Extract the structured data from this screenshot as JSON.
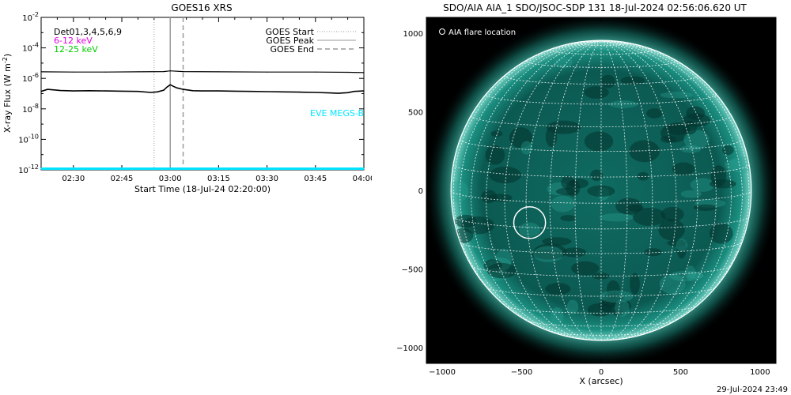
{
  "timestamp": "29-Jul-2024 23:49",
  "colors": {
    "det_label": "#000000",
    "band_low_label": "#e000e0",
    "band_high_label": "#00cc00",
    "eve_label": "#00e5ff",
    "flux_series": "#000000",
    "start_line": "#9a9a9a",
    "peak_line": "#9a9a9a",
    "end_line": "#9a9a9a",
    "solar_disk": "#0b5a52",
    "grid": "#ffffff"
  },
  "chart_data": [
    {
      "type": "line",
      "title": "GOES16 XRS",
      "xlabel": "Start Time (18-Jul-24 02:20:00)",
      "ylabel": "X-ray Flux (W m",
      "ylabel_sup": "-2",
      "ylabel_end": ")",
      "y_scale": "log",
      "xlim_minutes": [
        0,
        100
      ],
      "x_ticks": [
        {
          "minute": 10,
          "label": "02:30"
        },
        {
          "minute": 25,
          "label": "02:45"
        },
        {
          "minute": 40,
          "label": "03:00"
        },
        {
          "minute": 55,
          "label": "03:15"
        },
        {
          "minute": 70,
          "label": "03:30"
        },
        {
          "minute": 85,
          "label": "03:45"
        },
        {
          "minute": 100,
          "label": "04:00"
        }
      ],
      "ylim_exponent": [
        -12,
        -2
      ],
      "y_ticks": [
        {
          "exp": -2,
          "label": "10",
          "sup": "-2"
        },
        {
          "exp": -4,
          "label": "10",
          "sup": "-4"
        },
        {
          "exp": -6,
          "label": "10",
          "sup": "-6"
        },
        {
          "exp": -8,
          "label": "10",
          "sup": "-8"
        },
        {
          "exp": -10,
          "label": "10",
          "sup": "-10"
        },
        {
          "exp": -12,
          "label": "10",
          "sup": "-12"
        }
      ],
      "detector_label": "Det01,3,4,5,6,9",
      "band_labels": [
        "6-12 keV",
        "12-25 keV"
      ],
      "legend": [
        {
          "label": "GOES Start",
          "style": "dotted"
        },
        {
          "label": "GOES Peak",
          "style": "solid"
        },
        {
          "label": "GOES End",
          "style": "dashed"
        }
      ],
      "eve_label": "EVE MEGS-B",
      "markers": {
        "start": 35.0,
        "peak": 40.0,
        "end": 44.0
      },
      "series": [
        {
          "name": "long channel",
          "x": [
            0,
            10,
            20,
            30,
            38,
            40,
            44,
            55,
            70,
            85,
            95,
            100
          ],
          "y": [
            2.7e-06,
            2.6e-06,
            2.6e-06,
            2.7e-06,
            2.8e-06,
            3.1e-06,
            2.8e-06,
            2.7e-06,
            2.6e-06,
            2.6e-06,
            2.5e-06,
            2.4e-06
          ]
        },
        {
          "name": "short channel",
          "x": [
            0,
            2,
            6,
            10,
            15,
            20,
            25,
            30,
            34,
            36,
            38,
            39,
            40,
            41,
            42,
            44,
            47,
            50,
            55,
            60,
            65,
            70,
            75,
            80,
            85,
            90,
            92,
            95,
            97,
            100
          ],
          "y": [
            1.4e-07,
            1.9e-07,
            1.6e-07,
            1.5e-07,
            1.55e-07,
            1.5e-07,
            1.45e-07,
            1.4e-07,
            1.2e-07,
            1.3e-07,
            1.7e-07,
            2.7e-07,
            3.8e-07,
            3e-07,
            2.4e-07,
            1.9e-07,
            1.55e-07,
            1.5e-07,
            1.5e-07,
            1.45e-07,
            1.4e-07,
            1.35e-07,
            1.3e-07,
            1.25e-07,
            1.2e-07,
            1.1e-07,
            1.05e-07,
            1.15e-07,
            1.4e-07,
            1.5e-07
          ]
        },
        {
          "name": "EVE MEGS-B",
          "x": [
            0,
            100
          ],
          "y": [
            1e-12,
            1e-12
          ]
        }
      ]
    },
    {
      "type": "scatter",
      "title": "SDO/AIA AIA_1 SDO/JSOC-SDP 131 18-Jul-2024 02:56:06.620 UT",
      "xlabel": "X (arcsec)",
      "ylabel": "",
      "xlim": [
        -1100,
        1100
      ],
      "ylim": [
        -1100,
        1100
      ],
      "x_ticks": [
        -1000,
        -500,
        0,
        500,
        1000
      ],
      "y_ticks": [
        1000,
        500,
        0,
        -500,
        -1000
      ],
      "solar_radius_arcsec": 945,
      "grid_step_deg": 10,
      "legend": [
        {
          "label": "AIA flare location",
          "marker": "circle"
        }
      ],
      "flare_location": {
        "x": -450,
        "y": -205,
        "radius": 100
      }
    }
  ]
}
